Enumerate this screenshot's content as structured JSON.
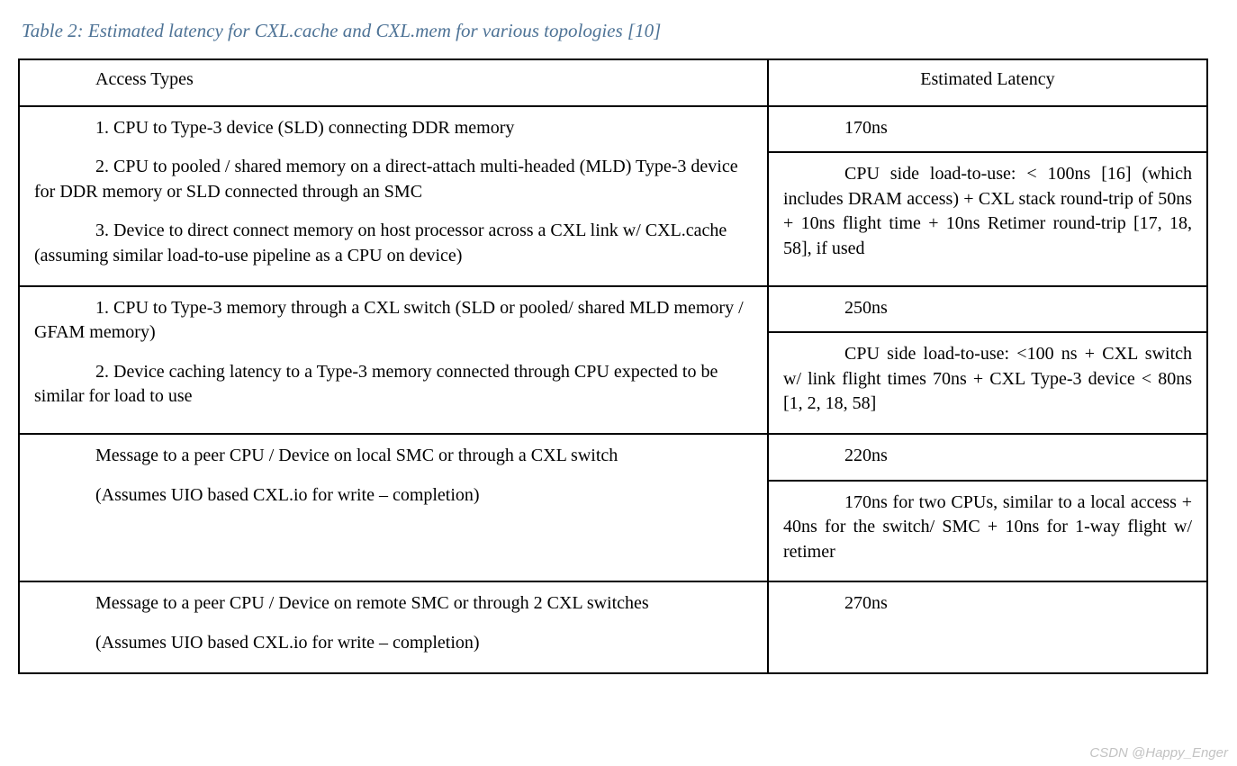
{
  "caption": "Table 2: Estimated latency for CXL.cache and CXL.mem for various topologies [10]",
  "headers": {
    "left": "Access Types",
    "right": "Estimated Latency"
  },
  "rows": [
    {
      "left": [
        "1. CPU to Type-3 device (SLD) connecting DDR memory",
        "2. CPU to pooled / shared memory on a direct-attach multi-headed (MLD) Type-3 device for DDR memory or SLD connected through an SMC",
        "3. Device to direct connect memory on host processor across a CXL link w/ CXL.cache (assuming similar load-to-use pipeline as a CPU on device)"
      ],
      "right_top": "170ns",
      "right_detail": "CPU side load-to-use: < 100ns [16] (which includes DRAM access) + CXL stack round-trip of 50ns + 10ns flight time + 10ns Retimer round-trip [17, 18, 58], if used"
    },
    {
      "left": [
        "1. CPU to Type-3 memory through a CXL switch (SLD or pooled/ shared MLD memory / GFAM memory)",
        "2. Device caching latency to a Type-3 memory connected through CPU expected to be similar for load to use"
      ],
      "right_top": "250ns",
      "right_detail": "CPU side load-to-use: <100 ns + CXL switch w/ link flight times 70ns + CXL Type-3 device < 80ns [1, 2, 18, 58]"
    },
    {
      "left": [
        "Message to a peer CPU / Device on local SMC or through a CXL switch",
        "(Assumes UIO based CXL.io for write – completion)"
      ],
      "right_top": "220ns",
      "right_detail": "170ns for two CPUs, similar to a local access + 40ns for the switch/ SMC + 10ns for 1-way flight w/ retimer"
    },
    {
      "left": [
        "Message to a peer CPU / Device on remote SMC or through 2 CXL switches",
        "(Assumes UIO based CXL.io for write – completion)"
      ],
      "right_single": "270ns"
    }
  ],
  "watermark": "CSDN @Happy_Enger"
}
